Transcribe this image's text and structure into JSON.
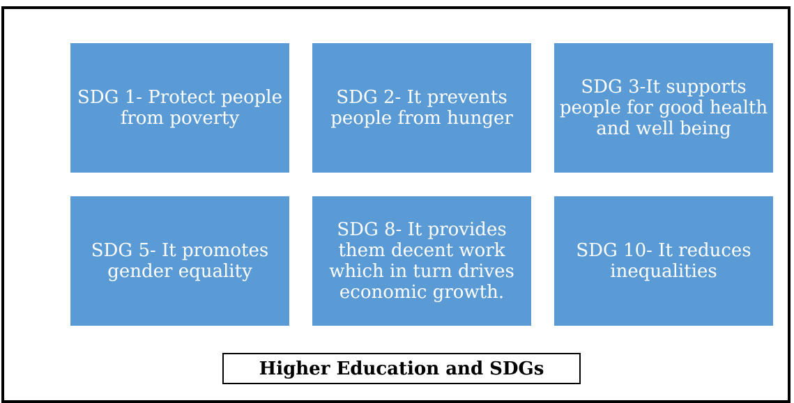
{
  "boxes": [
    {
      "text": "SDG 1- Protect people from poverty"
    },
    {
      "text": "SDG 2- It prevents people from hunger"
    },
    {
      "text": "SDG 3-It supports people for good health and well being"
    },
    {
      "text": "SDG 5- It promotes gender equality"
    },
    {
      "text": "SDG 8- It provides them decent work which in turn drives economic growth."
    },
    {
      "text": "SDG 10- It reduces inequalities"
    }
  ],
  "caption": "Higher Education and SDGs",
  "colors": {
    "box_fill": "#5b9bd5",
    "box_text": "#ffffff",
    "frame_border": "#000000"
  }
}
